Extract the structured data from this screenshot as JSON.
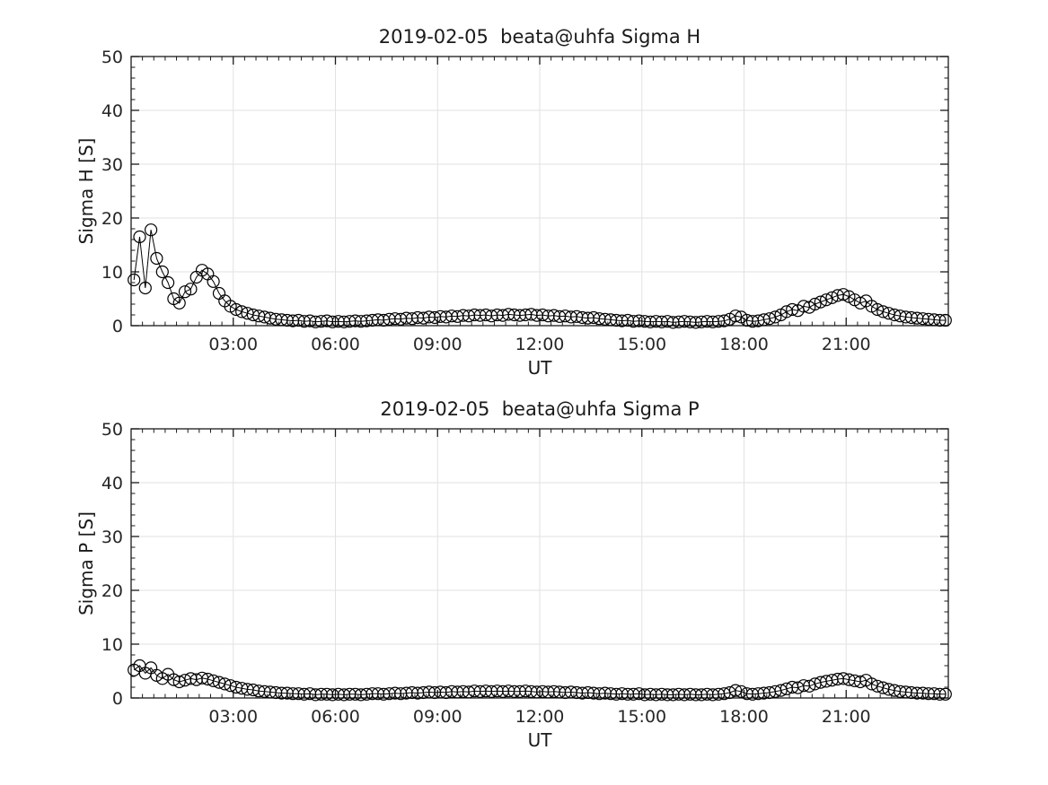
{
  "figure": {
    "background": "#ffffff",
    "axis_color": "#1a1a1a",
    "text_color": "#262626",
    "grid_color": "#e2e2e2",
    "marker_color": "#000000"
  },
  "chart_data": [
    {
      "type": "scatter",
      "title": "2019-02-05  beata@uhfa Sigma H",
      "xlabel": "UT",
      "ylabel": "Sigma H [S]",
      "marker": "open-circle",
      "line_between_points": true,
      "grid": "major",
      "legend": "none",
      "xlim_hours": [
        0,
        24
      ],
      "ylim": [
        0,
        50
      ],
      "x_major_ticks_hours": [
        3,
        6,
        9,
        12,
        15,
        18,
        21
      ],
      "x_tick_labels": [
        "03:00",
        "06:00",
        "09:00",
        "12:00",
        "15:00",
        "18:00",
        "21:00"
      ],
      "x_minor_step_hours": 0.3333,
      "y_major_ticks": [
        0,
        10,
        20,
        30,
        40,
        50
      ],
      "y_tick_labels": [
        "0",
        "10",
        "20",
        "30",
        "40",
        "50"
      ],
      "y_minor_step": 2,
      "x_start_hours": 0.0833,
      "x_step_hours": 0.166667,
      "values": [
        8.5,
        16.5,
        7.0,
        17.8,
        12.5,
        10.0,
        8.0,
        5.0,
        4.2,
        6.3,
        6.8,
        9.0,
        10.3,
        9.6,
        8.2,
        6.0,
        4.6,
        3.6,
        3.0,
        2.6,
        2.3,
        2.0,
        1.8,
        1.6,
        1.4,
        1.2,
        1.1,
        1.0,
        0.9,
        1.0,
        0.8,
        0.9,
        0.7,
        0.8,
        0.9,
        0.7,
        0.8,
        0.7,
        0.8,
        0.9,
        0.8,
        0.9,
        1.0,
        1.1,
        1.0,
        1.2,
        1.3,
        1.2,
        1.4,
        1.3,
        1.5,
        1.4,
        1.6,
        1.5,
        1.7,
        1.6,
        1.8,
        1.7,
        1.9,
        1.8,
        2.0,
        1.9,
        2.0,
        1.8,
        2.0,
        1.9,
        2.1,
        2.0,
        1.9,
        2.0,
        2.1,
        1.9,
        2.0,
        1.8,
        1.9,
        1.7,
        1.8,
        1.6,
        1.7,
        1.5,
        1.4,
        1.5,
        1.3,
        1.2,
        1.1,
        1.0,
        0.9,
        1.0,
        0.8,
        0.9,
        0.8,
        0.7,
        0.8,
        0.7,
        0.8,
        0.6,
        0.7,
        0.8,
        0.7,
        0.6,
        0.7,
        0.8,
        0.7,
        0.8,
        0.9,
        1.2,
        1.8,
        1.6,
        1.0,
        0.8,
        0.9,
        1.1,
        1.3,
        1.6,
        2.0,
        2.6,
        3.0,
        2.8,
        3.6,
        3.4,
        4.0,
        4.4,
        4.8,
        5.2,
        5.6,
        5.8,
        5.4,
        4.8,
        4.2,
        4.6,
        3.6,
        3.0,
        2.6,
        2.3,
        2.0,
        1.8,
        1.6,
        1.5,
        1.4,
        1.3,
        1.2,
        1.1,
        1.0,
        1.0
      ]
    },
    {
      "type": "scatter",
      "title": "2019-02-05  beata@uhfa Sigma P",
      "xlabel": "UT",
      "ylabel": "Sigma P [S]",
      "marker": "open-circle",
      "line_between_points": true,
      "grid": "major",
      "legend": "none",
      "xlim_hours": [
        0,
        24
      ],
      "ylim": [
        0,
        50
      ],
      "x_major_ticks_hours": [
        3,
        6,
        9,
        12,
        15,
        18,
        21
      ],
      "x_tick_labels": [
        "03:00",
        "06:00",
        "09:00",
        "12:00",
        "15:00",
        "18:00",
        "21:00"
      ],
      "x_minor_step_hours": 0.3333,
      "y_major_ticks": [
        0,
        10,
        20,
        30,
        40,
        50
      ],
      "y_tick_labels": [
        "0",
        "10",
        "20",
        "30",
        "40",
        "50"
      ],
      "y_minor_step": 2,
      "x_start_hours": 0.0833,
      "x_step_hours": 0.166667,
      "values": [
        5.2,
        6.0,
        4.6,
        5.6,
        4.2,
        3.6,
        4.4,
        3.4,
        3.0,
        3.3,
        3.6,
        3.4,
        3.7,
        3.5,
        3.2,
        2.9,
        2.6,
        2.3,
        2.0,
        1.8,
        1.6,
        1.5,
        1.3,
        1.2,
        1.1,
        1.0,
        0.9,
        0.9,
        0.8,
        0.8,
        0.7,
        0.8,
        0.6,
        0.7,
        0.7,
        0.6,
        0.7,
        0.6,
        0.7,
        0.7,
        0.6,
        0.7,
        0.8,
        0.8,
        0.7,
        0.8,
        0.9,
        0.8,
        0.9,
        1.0,
        0.9,
        1.0,
        1.1,
        1.0,
        1.1,
        1.0,
        1.2,
        1.1,
        1.2,
        1.1,
        1.3,
        1.2,
        1.3,
        1.2,
        1.3,
        1.2,
        1.3,
        1.2,
        1.2,
        1.3,
        1.2,
        1.1,
        1.2,
        1.1,
        1.2,
        1.1,
        1.0,
        1.1,
        1.0,
        0.9,
        1.0,
        0.9,
        0.8,
        0.9,
        0.8,
        0.7,
        0.8,
        0.7,
        0.7,
        0.8,
        0.6,
        0.7,
        0.6,
        0.7,
        0.6,
        0.6,
        0.7,
        0.6,
        0.7,
        0.6,
        0.6,
        0.7,
        0.6,
        0.7,
        0.8,
        1.0,
        1.4,
        1.2,
        0.8,
        0.7,
        0.8,
        0.9,
        1.0,
        1.2,
        1.4,
        1.7,
        2.0,
        1.9,
        2.3,
        2.2,
        2.6,
        2.9,
        3.1,
        3.3,
        3.5,
        3.6,
        3.4,
        3.2,
        3.0,
        3.3,
        2.6,
        2.2,
        1.9,
        1.6,
        1.4,
        1.2,
        1.1,
        1.0,
        0.9,
        0.9,
        0.8,
        0.8,
        0.7,
        0.7
      ]
    }
  ]
}
